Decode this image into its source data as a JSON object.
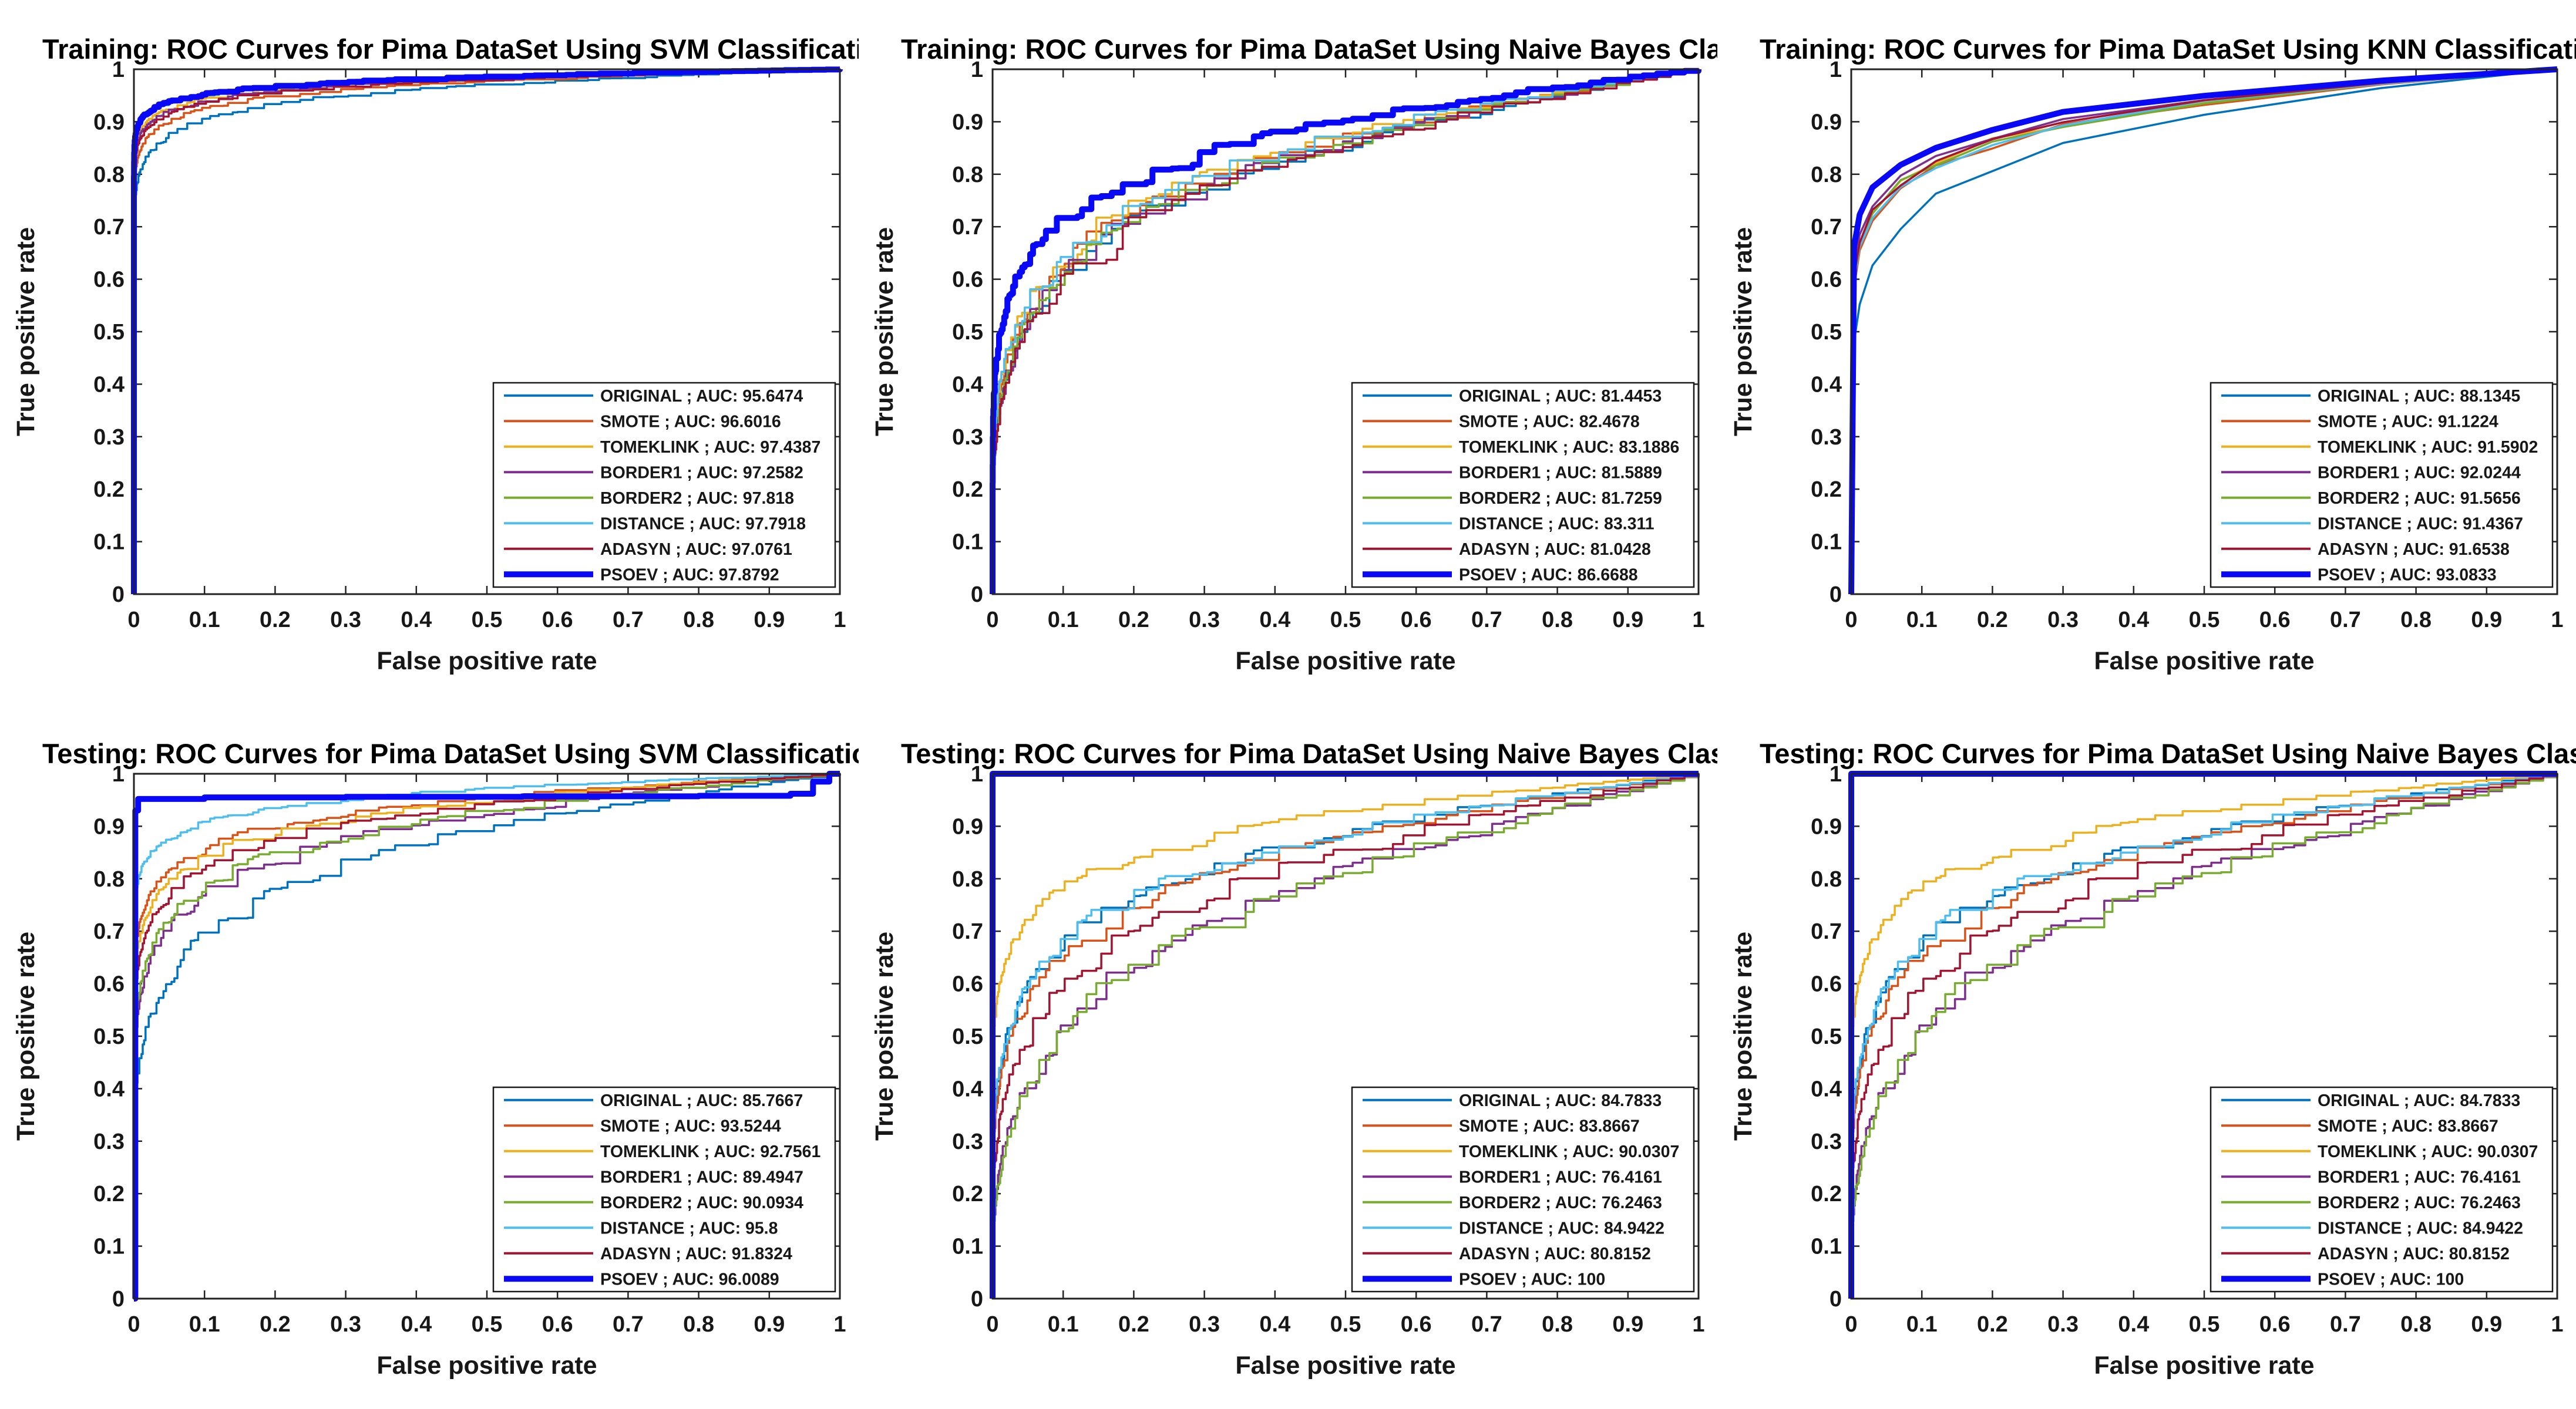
{
  "figure": {
    "xlabel": "False positive rate",
    "ylabel": "True positive rate",
    "xtick_labels": [
      "0",
      "0.1",
      "0.2",
      "0.3",
      "0.4",
      "0.5",
      "0.6",
      "0.7",
      "0.8",
      "0.9",
      "1"
    ],
    "ytick_labels": [
      "0",
      "0.1",
      "0.2",
      "0.3",
      "0.4",
      "0.5",
      "0.6",
      "0.7",
      "0.8",
      "0.9",
      "1"
    ],
    "axis_color": "#222222",
    "background": "#ffffff",
    "legend_position": "lower right"
  },
  "palette": {
    "ORIGINAL": "#0072BD",
    "SMOTE": "#D95319",
    "TOMEKLINK": "#EDB120",
    "BORDER1": "#7E2F8E",
    "BORDER2": "#77AC30",
    "DISTANCE": "#4DBEEE",
    "ADASYN": "#A2142F",
    "PSOEV": "#0909F5"
  },
  "chart_data": [
    {
      "type": "line",
      "title": "Training: ROC Curves for Pima DataSet Using SVM Classification.",
      "xlabel": "False positive rate",
      "ylabel": "True positive rate",
      "xlim": [
        0,
        1
      ],
      "ylim": [
        0,
        1
      ],
      "grid": false,
      "curve_style": "step",
      "seed": 0,
      "legend_position": "lower right",
      "series": [
        {
          "name": "ORIGINAL",
          "label": "ORIGINAL ; AUC: 95.6474",
          "auc": 95.6474,
          "color": "#0072BD",
          "lw": 3.5
        },
        {
          "name": "SMOTE",
          "label": "SMOTE ; AUC: 96.6016",
          "auc": 96.6016,
          "color": "#D95319",
          "lw": 3.5
        },
        {
          "name": "TOMEKLINK",
          "label": "TOMEKLINK ; AUC: 97.4387",
          "auc": 97.4387,
          "color": "#EDB120",
          "lw": 3.5
        },
        {
          "name": "BORDER1",
          "label": "BORDER1 ; AUC: 97.2582",
          "auc": 97.2582,
          "color": "#7E2F8E",
          "lw": 3.5
        },
        {
          "name": "BORDER2",
          "label": "BORDER2 ; AUC: 97.818",
          "auc": 97.818,
          "color": "#77AC30",
          "lw": 3.5
        },
        {
          "name": "DISTANCE",
          "label": "DISTANCE ; AUC: 97.7918",
          "auc": 97.7918,
          "color": "#4DBEEE",
          "lw": 3.5
        },
        {
          "name": "ADASYN",
          "label": "ADASYN ; AUC: 97.0761",
          "auc": 97.0761,
          "color": "#A2142F",
          "lw": 3.5
        },
        {
          "name": "PSOEV",
          "label": "PSOEV ; AUC: 97.8792",
          "auc": 97.8792,
          "color": "#0909F5",
          "lw": 10
        }
      ]
    },
    {
      "type": "line",
      "title": "Training: ROC Curves for Pima DataSet Using Naive Bayes Classification.",
      "xlabel": "False positive rate",
      "ylabel": "True positive rate",
      "xlim": [
        0,
        1
      ],
      "ylim": [
        0,
        1
      ],
      "grid": false,
      "curve_style": "step",
      "seed": 1,
      "legend_position": "lower right",
      "series": [
        {
          "name": "ORIGINAL",
          "label": "ORIGINAL ; AUC: 81.4453",
          "auc": 81.4453,
          "color": "#0072BD",
          "lw": 3.5
        },
        {
          "name": "SMOTE",
          "label": "SMOTE ; AUC: 82.4678",
          "auc": 82.4678,
          "color": "#D95319",
          "lw": 3.5
        },
        {
          "name": "TOMEKLINK",
          "label": "TOMEKLINK ; AUC: 83.1886",
          "auc": 83.1886,
          "color": "#EDB120",
          "lw": 3.5
        },
        {
          "name": "BORDER1",
          "label": "BORDER1 ; AUC: 81.5889",
          "auc": 81.5889,
          "color": "#7E2F8E",
          "lw": 3.5
        },
        {
          "name": "BORDER2",
          "label": "BORDER2 ; AUC: 81.7259",
          "auc": 81.7259,
          "color": "#77AC30",
          "lw": 3.5
        },
        {
          "name": "DISTANCE",
          "label": "DISTANCE ; AUC: 83.311",
          "auc": 83.311,
          "color": "#4DBEEE",
          "lw": 3.5
        },
        {
          "name": "ADASYN",
          "label": "ADASYN ; AUC: 81.0428",
          "auc": 81.0428,
          "color": "#A2142F",
          "lw": 3.5
        },
        {
          "name": "PSOEV",
          "label": "PSOEV ; AUC: 86.6688",
          "auc": 86.6688,
          "color": "#0909F5",
          "lw": 10
        }
      ]
    },
    {
      "type": "line",
      "title": "Training: ROC Curves for Pima DataSet Using KNN Classification.",
      "xlabel": "False positive rate",
      "ylabel": "True positive rate",
      "xlim": [
        0,
        1
      ],
      "ylim": [
        0,
        1
      ],
      "grid": false,
      "curve_style": "linear",
      "seed": 2,
      "legend_position": "lower right",
      "series": [
        {
          "name": "ORIGINAL",
          "label": "ORIGINAL ; AUC: 88.1345",
          "auc": 88.1345,
          "color": "#0072BD",
          "lw": 3.5
        },
        {
          "name": "SMOTE",
          "label": "SMOTE ; AUC: 91.1224",
          "auc": 91.1224,
          "color": "#D95319",
          "lw": 3.5
        },
        {
          "name": "TOMEKLINK",
          "label": "TOMEKLINK ; AUC: 91.5902",
          "auc": 91.5902,
          "color": "#EDB120",
          "lw": 3.5
        },
        {
          "name": "BORDER1",
          "label": "BORDER1 ; AUC: 92.0244",
          "auc": 92.0244,
          "color": "#7E2F8E",
          "lw": 3.5
        },
        {
          "name": "BORDER2",
          "label": "BORDER2 ; AUC: 91.5656",
          "auc": 91.5656,
          "color": "#77AC30",
          "lw": 3.5
        },
        {
          "name": "DISTANCE",
          "label": "DISTANCE ; AUC: 91.4367",
          "auc": 91.4367,
          "color": "#4DBEEE",
          "lw": 3.5
        },
        {
          "name": "ADASYN",
          "label": "ADASYN ; AUC: 91.6538",
          "auc": 91.6538,
          "color": "#A2142F",
          "lw": 3.5
        },
        {
          "name": "PSOEV",
          "label": "PSOEV ; AUC: 93.0833",
          "auc": 93.0833,
          "color": "#0909F5",
          "lw": 10
        }
      ]
    },
    {
      "type": "line",
      "title": "Testing: ROC Curves for Pima DataSet Using SVM Classification.",
      "xlabel": "False positive rate",
      "ylabel": "True positive rate",
      "xlim": [
        0,
        1
      ],
      "ylim": [
        0,
        1
      ],
      "grid": false,
      "curve_style": "step",
      "seed": 3,
      "legend_position": "lower right",
      "series": [
        {
          "name": "ORIGINAL",
          "label": "ORIGINAL ; AUC: 85.7667",
          "auc": 85.7667,
          "color": "#0072BD",
          "lw": 3.5
        },
        {
          "name": "SMOTE",
          "label": "SMOTE ; AUC: 93.5244",
          "auc": 93.5244,
          "color": "#D95319",
          "lw": 3.5
        },
        {
          "name": "TOMEKLINK",
          "label": "TOMEKLINK ; AUC: 92.7561",
          "auc": 92.7561,
          "color": "#EDB120",
          "lw": 3.5
        },
        {
          "name": "BORDER1",
          "label": "BORDER1 ; AUC: 89.4947",
          "auc": 89.4947,
          "color": "#7E2F8E",
          "lw": 3.5
        },
        {
          "name": "BORDER2",
          "label": "BORDER2 ; AUC: 90.0934",
          "auc": 90.0934,
          "color": "#77AC30",
          "lw": 3.5
        },
        {
          "name": "DISTANCE",
          "label": "DISTANCE ; AUC: 95.8",
          "auc": 95.8,
          "color": "#4DBEEE",
          "lw": 3.5
        },
        {
          "name": "ADASYN",
          "label": "ADASYN ; AUC: 91.8324",
          "auc": 91.8324,
          "color": "#A2142F",
          "lw": 3.5
        },
        {
          "name": "PSOEV",
          "label": "PSOEV ; AUC: 96.0089",
          "auc": 96.0089,
          "color": "#0909F5",
          "lw": 10,
          "plateau": [
            [
              0,
              0
            ],
            [
              0.002,
              0.93
            ],
            [
              0.006,
              0.952
            ],
            [
              0.1,
              0.955
            ],
            [
              0.3,
              0.956
            ],
            [
              0.55,
              0.957
            ],
            [
              0.8,
              0.958
            ],
            [
              0.93,
              0.962
            ],
            [
              0.962,
              0.985
            ],
            [
              0.985,
              1
            ],
            [
              1,
              1
            ]
          ]
        }
      ]
    },
    {
      "type": "line",
      "title": "Testing: ROC Curves for Pima DataSet Using Naive Bayes Classification.",
      "xlabel": "False positive rate",
      "ylabel": "True positive rate",
      "xlim": [
        0,
        1
      ],
      "ylim": [
        0,
        1
      ],
      "grid": false,
      "curve_style": "step",
      "seed": 4,
      "legend_position": "lower right",
      "series": [
        {
          "name": "ORIGINAL",
          "label": "ORIGINAL ; AUC: 84.7833",
          "auc": 84.7833,
          "color": "#0072BD",
          "lw": 3.5
        },
        {
          "name": "SMOTE",
          "label": "SMOTE ; AUC: 83.8667",
          "auc": 83.8667,
          "color": "#D95319",
          "lw": 3.5
        },
        {
          "name": "TOMEKLINK",
          "label": "TOMEKLINK ; AUC: 90.0307",
          "auc": 90.0307,
          "color": "#EDB120",
          "lw": 3.5
        },
        {
          "name": "BORDER1",
          "label": "BORDER1 ; AUC: 76.4161",
          "auc": 76.4161,
          "color": "#7E2F8E",
          "lw": 3.5
        },
        {
          "name": "BORDER2",
          "label": "BORDER2 ; AUC: 76.2463",
          "auc": 76.2463,
          "color": "#77AC30",
          "lw": 3.5
        },
        {
          "name": "DISTANCE",
          "label": "DISTANCE ; AUC: 84.9422",
          "auc": 84.9422,
          "color": "#4DBEEE",
          "lw": 3.5
        },
        {
          "name": "ADASYN",
          "label": "ADASYN ; AUC: 80.8152",
          "auc": 80.8152,
          "color": "#A2142F",
          "lw": 3.5
        },
        {
          "name": "PSOEV",
          "label": "PSOEV ; AUC: 100",
          "auc": 100,
          "color": "#0909F5",
          "lw": 10
        }
      ]
    },
    {
      "type": "line",
      "title": "Testing: ROC Curves for Pima DataSet Using Naive Bayes Classification.",
      "xlabel": "False positive rate",
      "ylabel": "True positive rate",
      "xlim": [
        0,
        1
      ],
      "ylim": [
        0,
        1
      ],
      "grid": false,
      "curve_style": "step",
      "seed": 4,
      "legend_position": "lower right",
      "series": [
        {
          "name": "ORIGINAL",
          "label": "ORIGINAL ; AUC: 84.7833",
          "auc": 84.7833,
          "color": "#0072BD",
          "lw": 3.5
        },
        {
          "name": "SMOTE",
          "label": "SMOTE ; AUC: 83.8667",
          "auc": 83.8667,
          "color": "#D95319",
          "lw": 3.5
        },
        {
          "name": "TOMEKLINK",
          "label": "TOMEKLINK ; AUC: 90.0307",
          "auc": 90.0307,
          "color": "#EDB120",
          "lw": 3.5
        },
        {
          "name": "BORDER1",
          "label": "BORDER1 ; AUC: 76.4161",
          "auc": 76.4161,
          "color": "#7E2F8E",
          "lw": 3.5
        },
        {
          "name": "BORDER2",
          "label": "BORDER2 ; AUC: 76.2463",
          "auc": 76.2463,
          "color": "#77AC30",
          "lw": 3.5
        },
        {
          "name": "DISTANCE",
          "label": "DISTANCE ; AUC: 84.9422",
          "auc": 84.9422,
          "color": "#4DBEEE",
          "lw": 3.5
        },
        {
          "name": "ADASYN",
          "label": "ADASYN ; AUC: 80.8152",
          "auc": 80.8152,
          "color": "#A2142F",
          "lw": 3.5
        },
        {
          "name": "PSOEV",
          "label": "PSOEV ; AUC: 100",
          "auc": 100,
          "color": "#0909F5",
          "lw": 10
        }
      ]
    }
  ]
}
